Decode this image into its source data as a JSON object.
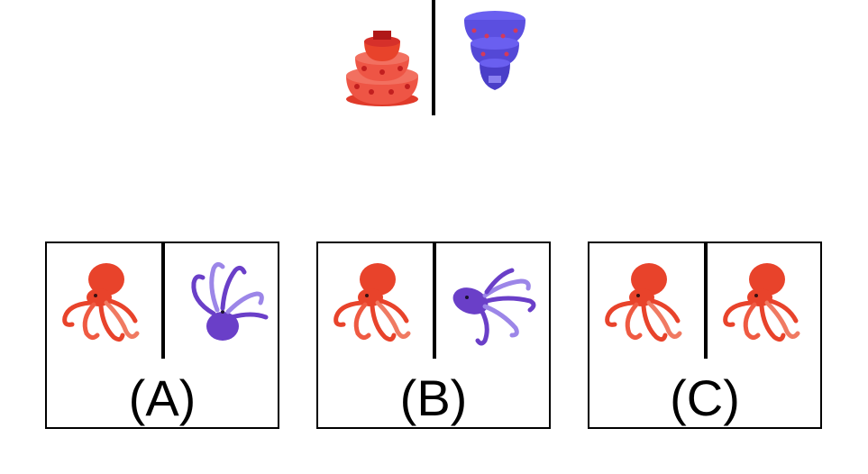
{
  "colors": {
    "red": "#e8432b",
    "red_light": "#f07a62",
    "blue": "#5b4fe0",
    "purple": "#6a3fc8",
    "purple_light": "#9c86e8"
  },
  "example": {
    "left_object": "red-cake-icon",
    "right_object": "blue-cake-icon"
  },
  "options": [
    {
      "label": "(A)",
      "left": "red-octopus-icon",
      "right": "purple-octopus-icon"
    },
    {
      "label": "(B)",
      "left": "red-octopus-icon",
      "right": "purple-octopus-icon"
    },
    {
      "label": "(C)",
      "left": "red-octopus-icon",
      "right": "red-octopus-icon"
    }
  ]
}
